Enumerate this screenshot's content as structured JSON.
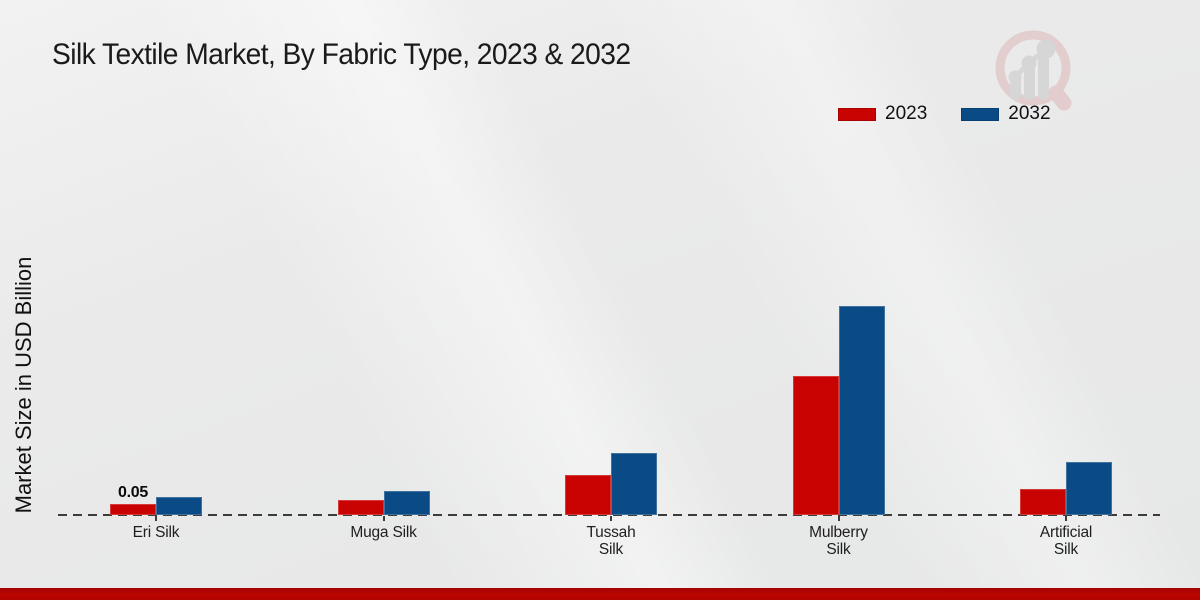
{
  "title": "Silk Textile Market, By Fabric Type, 2023 & 2032",
  "y_axis_label": "Market Size in USD Billion",
  "legend": {
    "items": [
      {
        "label": "2023",
        "color": "#c80301"
      },
      {
        "label": "2032",
        "color": "#0a4b85"
      }
    ],
    "position": "top-right"
  },
  "colors": {
    "bar_2023": "#c80301",
    "bar_2032": "#0a4b85",
    "baseline": "#3c3c3c",
    "footer_band": "#b80400",
    "background": "#e9eaea",
    "watermark_pink": "#ddb6b9",
    "watermark_gray": "#c7c7c9"
  },
  "chart_data": {
    "type": "bar",
    "title": "Silk Textile Market, By Fabric Type, 2023 & 2032",
    "xlabel": "",
    "ylabel": "Market Size in USD Billion",
    "categories": [
      "Eri Silk",
      "Muga Silk",
      "Tussah\nSilk",
      "Mulberry\nSilk",
      "Artificial\nSilk"
    ],
    "series": [
      {
        "name": "2023",
        "color": "#c80301",
        "values": [
          0.05,
          0.07,
          0.18,
          0.63,
          0.12
        ]
      },
      {
        "name": "2032",
        "color": "#0a4b85",
        "values": [
          0.08,
          0.11,
          0.28,
          0.95,
          0.24
        ]
      }
    ],
    "value_labels_2023": [
      "0.05",
      "",
      "",
      "",
      ""
    ],
    "ylim": [
      0,
      1.0
    ],
    "grid": false,
    "y_axis_ticks_visible": false,
    "baseline_style": "dashed",
    "legend_position": "top-right",
    "units": "USD Billion"
  },
  "watermark_name": "market-research-magnifier-logo"
}
